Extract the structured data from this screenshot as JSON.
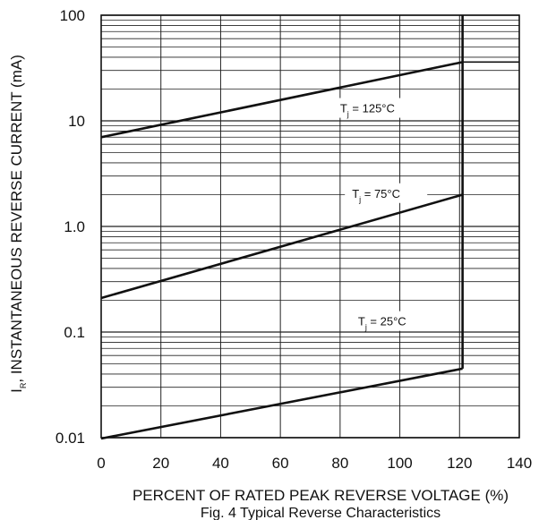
{
  "chart_data": {
    "type": "line",
    "caption": "Fig. 4  Typical Reverse Characteristics",
    "xlabel": "PERCENT OF RATED PEAK REVERSE VOLTAGE (%)",
    "ylabel_symbol": "I",
    "ylabel_sub": "R",
    "ylabel_rest": ", INSTANTANEOUS REVERSE CURRENT (mA)",
    "x_scale": "linear",
    "y_scale": "log",
    "xlim": [
      0,
      140
    ],
    "ylim": [
      0.01,
      100
    ],
    "x_ticks": [
      0,
      20,
      40,
      60,
      80,
      100,
      120,
      140
    ],
    "x_tick_labels": [
      "0",
      "20",
      "40",
      "60",
      "80",
      "100",
      "120",
      "140"
    ],
    "y_ticks": [
      0.01,
      0.1,
      1,
      10,
      100
    ],
    "y_tick_labels": [
      "0.01",
      "0.1",
      "1.0",
      "10",
      "100"
    ],
    "grid": true,
    "cutoff_x": 121,
    "series": [
      {
        "label_prefix": "T",
        "label_sub": "j",
        "label_rest": " = 125°C",
        "label_at": [
          80,
          12.5
        ],
        "x": [
          0,
          121
        ],
        "y": [
          7,
          36
        ]
      },
      {
        "label_prefix": "T",
        "label_sub": "j",
        "label_rest": " = 75°C",
        "label_at": [
          84,
          1.95
        ],
        "x": [
          0,
          121
        ],
        "y": [
          0.21,
          2.0
        ]
      },
      {
        "label_prefix": "T",
        "label_sub": "j",
        "label_rest": " = 25°C",
        "label_at": [
          86,
          0.12
        ],
        "x": [
          0,
          121
        ],
        "y": [
          0.0098,
          0.045
        ]
      }
    ]
  }
}
